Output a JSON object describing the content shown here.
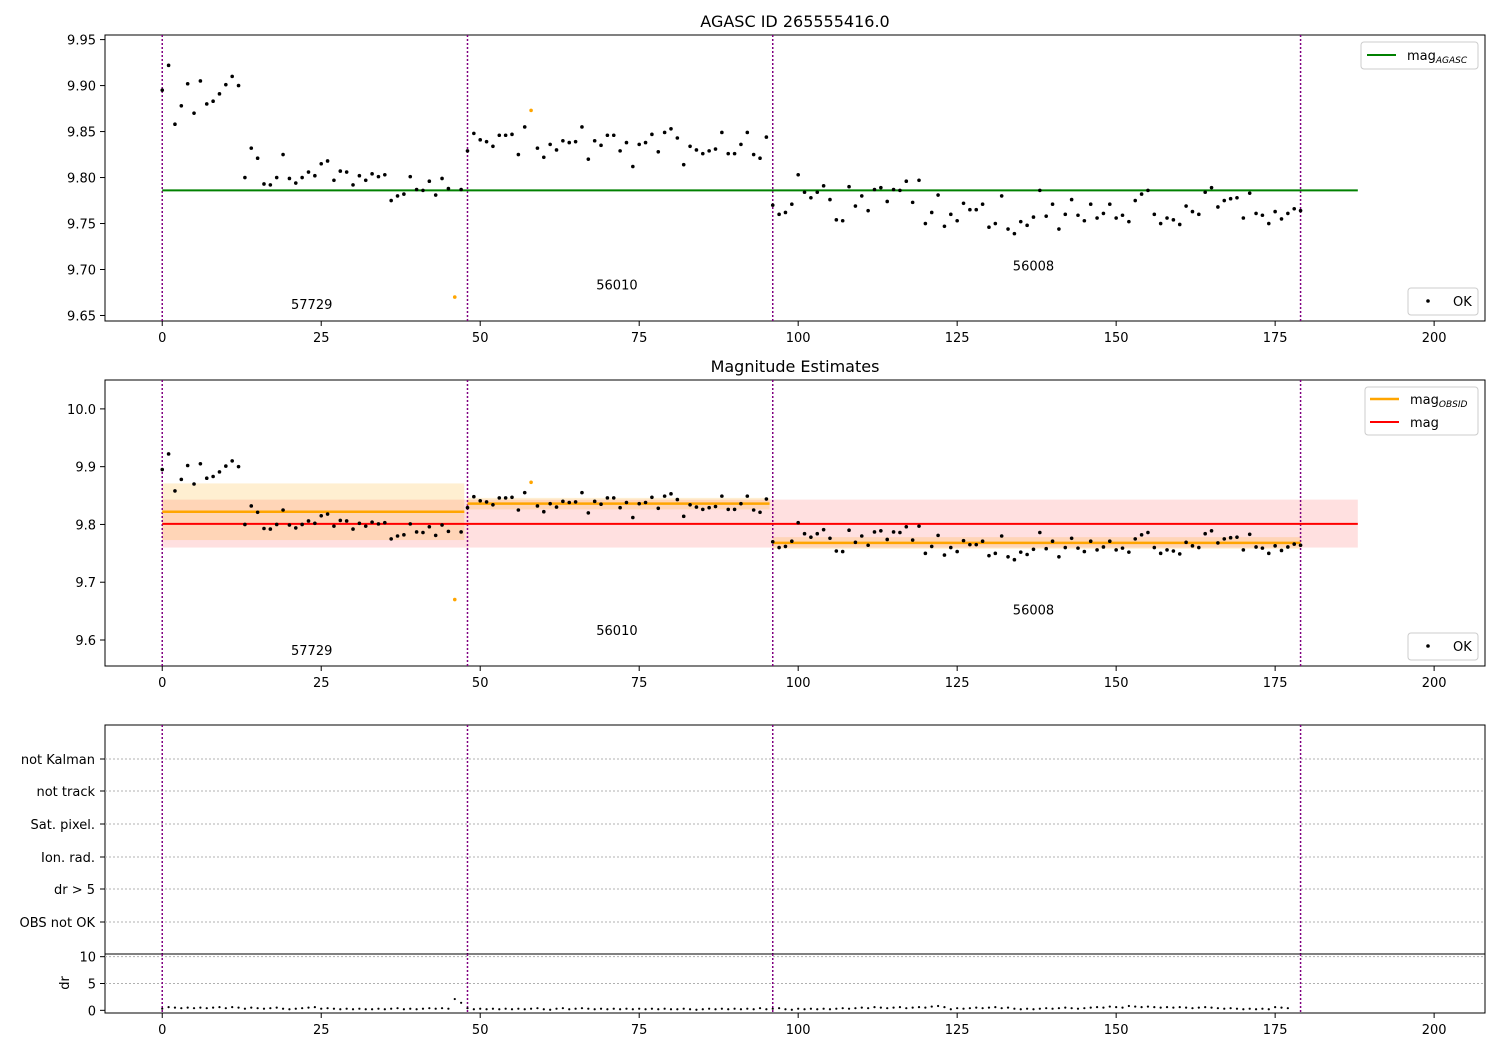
{
  "figure": {
    "panel1_title": "AGASC ID 265555416.0",
    "panel2_title": "Magnitude Estimates",
    "legend1_series": "mag",
    "legend1_series_sub": "AGASC",
    "legend2_series1": "mag",
    "legend2_series1_sub": "OBSID",
    "legend2_series2": "mag",
    "legend_points": "OK",
    "flag_labels": [
      "not Kalman",
      "not track",
      "Sat. pixel.",
      "Ion. rad.",
      "dr > 5",
      "OBS not OK"
    ],
    "dr_axis_label": "dr",
    "obsid_labels": [
      "57729",
      "56010",
      "56008"
    ]
  },
  "colors": {
    "agasc_line": "#008000",
    "mag_line": "#ff0000",
    "obsid_line": "#ffa500",
    "points_ok": "#000000",
    "points_flag": "#ffa500",
    "obs_separator": "#800080"
  },
  "chart_data": [
    {
      "type": "scatter",
      "title": "AGASC ID 265555416.0",
      "xlim": [
        -9,
        208
      ],
      "ylim": [
        9.644,
        9.955
      ],
      "xticks": [
        0,
        25,
        50,
        75,
        100,
        125,
        150,
        175,
        200
      ],
      "yticks": [
        9.65,
        9.7,
        9.75,
        9.8,
        9.85,
        9.9,
        9.95
      ],
      "obs_boundaries": [
        0,
        48,
        96,
        179
      ],
      "obsid_annotations": [
        {
          "x": 23.5,
          "y": 9.657,
          "text": "57729"
        },
        {
          "x": 71.5,
          "y": 9.678,
          "text": "56010"
        },
        {
          "x": 137,
          "y": 9.699,
          "text": "56008"
        }
      ],
      "mag_agasc": {
        "name": "mag_AGASC",
        "value": 9.786,
        "x_range": [
          0,
          188
        ]
      },
      "series": [
        {
          "name": "OK",
          "y_from": "magnitudes"
        }
      ],
      "flagged_points": [
        {
          "x": 46,
          "y": 9.67
        },
        {
          "x": 58,
          "y": 9.873
        }
      ],
      "legend": [
        "upper right: mag_AGASC",
        "lower right: OK"
      ]
    },
    {
      "type": "scatter",
      "title": "Magnitude Estimates",
      "xlim": [
        -9,
        208
      ],
      "ylim": [
        9.555,
        10.05
      ],
      "xticks": [
        0,
        25,
        50,
        75,
        100,
        125,
        150,
        175,
        200
      ],
      "yticks": [
        9.6,
        9.7,
        9.8,
        9.9,
        10.0
      ],
      "obs_boundaries": [
        0,
        48,
        96,
        179
      ],
      "obsid_annotations": [
        {
          "x": 23.5,
          "y": 9.574,
          "text": "57729"
        },
        {
          "x": 71.5,
          "y": 9.609,
          "text": "56010"
        },
        {
          "x": 137,
          "y": 9.644,
          "text": "56008"
        }
      ],
      "mag": {
        "name": "mag",
        "value": 9.801,
        "band": [
          9.76,
          9.843
        ],
        "x_range": [
          0,
          188
        ]
      },
      "mag_obsid": [
        {
          "x_range": [
            0,
            47.5
          ],
          "value": 9.822,
          "band": [
            9.773,
            9.871
          ]
        },
        {
          "x_range": [
            48,
            95.5
          ],
          "value": 9.836,
          "band": [
            9.826,
            9.846
          ]
        },
        {
          "x_range": [
            96,
            179
          ],
          "value": 9.768,
          "band": [
            9.758,
            9.778
          ]
        }
      ],
      "series": [
        {
          "name": "OK",
          "y_from": "magnitudes"
        }
      ],
      "flagged_points": [
        {
          "x": 46,
          "y": 9.67
        },
        {
          "x": 58,
          "y": 9.873
        }
      ],
      "legend": [
        "upper right: mag_OBSID, mag",
        "lower right: OK"
      ]
    },
    {
      "type": "scatter",
      "title": "",
      "categories": [
        "not Kalman",
        "not track",
        "Sat. pixel.",
        "Ion. rad.",
        "dr > 5",
        "OBS not OK"
      ],
      "flags": [],
      "grid": true
    },
    {
      "type": "scatter",
      "ylabel": "dr",
      "xlim": [
        -9,
        208
      ],
      "ylim": [
        -0.5,
        10.5
      ],
      "xticks": [
        0,
        25,
        50,
        75,
        100,
        125,
        150,
        175,
        200
      ],
      "yticks": [
        0,
        5,
        10
      ],
      "y_from": "dr"
    }
  ],
  "magnitudes": [
    9.895,
    9.922,
    9.858,
    9.878,
    9.902,
    9.87,
    9.905,
    9.88,
    9.883,
    9.891,
    9.901,
    9.91,
    9.9,
    9.8,
    9.832,
    9.821,
    9.793,
    9.792,
    9.8,
    9.825,
    9.799,
    9.794,
    9.8,
    9.806,
    9.802,
    9.815,
    9.818,
    9.797,
    9.807,
    9.806,
    9.792,
    9.802,
    9.797,
    9.804,
    9.801,
    9.803,
    9.775,
    9.78,
    9.782,
    9.801,
    9.787,
    9.786,
    9.796,
    9.781,
    9.799,
    9.788,
    null,
    9.787,
    9.829,
    9.848,
    9.841,
    9.839,
    9.834,
    9.846,
    9.846,
    9.847,
    9.825,
    9.855,
    null,
    9.832,
    9.822,
    9.836,
    9.83,
    9.84,
    9.838,
    9.839,
    9.855,
    9.82,
    9.84,
    9.835,
    9.846,
    9.846,
    9.829,
    9.838,
    9.812,
    9.836,
    9.838,
    9.847,
    9.828,
    9.849,
    9.853,
    9.843,
    9.814,
    9.834,
    9.83,
    9.826,
    9.829,
    9.831,
    9.849,
    9.826,
    9.826,
    9.836,
    9.849,
    9.825,
    9.821,
    9.844,
    9.77,
    9.76,
    9.762,
    9.771,
    9.803,
    9.784,
    9.778,
    9.784,
    9.791,
    9.776,
    9.754,
    9.753,
    9.79,
    9.769,
    9.78,
    9.764,
    9.787,
    9.789,
    9.774,
    9.787,
    9.786,
    9.796,
    9.773,
    9.797,
    9.75,
    9.762,
    9.781,
    9.747,
    9.76,
    9.753,
    9.772,
    9.765,
    9.765,
    9.771,
    9.746,
    9.75,
    9.78,
    9.744,
    9.739,
    9.752,
    9.748,
    9.757,
    9.786,
    9.758,
    9.771,
    9.744,
    9.76,
    9.776,
    9.759,
    9.753,
    9.771,
    9.756,
    9.761,
    9.771,
    9.756,
    9.759,
    9.752,
    9.775,
    9.782,
    9.786,
    9.76,
    9.75,
    9.756,
    9.754,
    9.749,
    9.769,
    9.763,
    9.76,
    9.784,
    9.789,
    9.768,
    9.775,
    9.777,
    9.778,
    9.756,
    9.783,
    9.761,
    9.759,
    9.75,
    9.763,
    9.755,
    9.761,
    9.766,
    9.764
  ],
  "dr": [
    0.3,
    0.6,
    0.5,
    0.4,
    0.5,
    0.4,
    0.5,
    0.4,
    0.5,
    0.6,
    0.4,
    0.6,
    0.5,
    0.3,
    0.5,
    0.4,
    0.3,
    0.4,
    0.5,
    0.3,
    0.2,
    0.3,
    0.4,
    0.5,
    0.6,
    0.3,
    0.4,
    0.3,
    0.2,
    0.3,
    0.2,
    0.3,
    0.2,
    0.2,
    0.3,
    0.2,
    0.3,
    0.4,
    0.2,
    0.3,
    0.2,
    0.3,
    0.4,
    0.3,
    0.4,
    0.3,
    2.1,
    1.4,
    0.4,
    0.2,
    0.3,
    0.2,
    0.3,
    0.2,
    0.3,
    0.2,
    0.3,
    0.2,
    0.3,
    0.4,
    0.2,
    0.1,
    0.3,
    0.4,
    0.2,
    0.3,
    0.4,
    0.3,
    0.2,
    0.3,
    0.2,
    0.3,
    0.2,
    0.3,
    0.2,
    0.3,
    0.2,
    0.3,
    0.2,
    0.3,
    0.2,
    0.2,
    0.3,
    0.2,
    0.1,
    0.2,
    0.3,
    0.2,
    0.3,
    0.2,
    0.3,
    0.2,
    0.3,
    0.2,
    0.4,
    0.2,
    0.3,
    0.4,
    0.2,
    0.1,
    0.3,
    0.2,
    0.3,
    0.2,
    0.3,
    0.2,
    0.3,
    0.4,
    0.3,
    0.4,
    0.5,
    0.4,
    0.6,
    0.5,
    0.4,
    0.5,
    0.6,
    0.4,
    0.5,
    0.6,
    0.5,
    0.7,
    0.8,
    0.6,
    0.2,
    0.4,
    0.3,
    0.4,
    0.5,
    0.4,
    0.5,
    0.6,
    0.4,
    0.5,
    0.3,
    0.2,
    0.3,
    0.2,
    0.3,
    0.4,
    0.3,
    0.4,
    0.5,
    0.4,
    0.3,
    0.4,
    0.5,
    0.6,
    0.5,
    0.7,
    0.6,
    0.5,
    0.8,
    0.7,
    0.6,
    0.7,
    0.6,
    0.5,
    0.6,
    0.5,
    0.6,
    0.5,
    0.4,
    0.5,
    0.6,
    0.5,
    0.4,
    0.3,
    0.4,
    0.3,
    0.2,
    0.3,
    0.2,
    0.3,
    0.2,
    0.6,
    0.5,
    0.4
  ]
}
